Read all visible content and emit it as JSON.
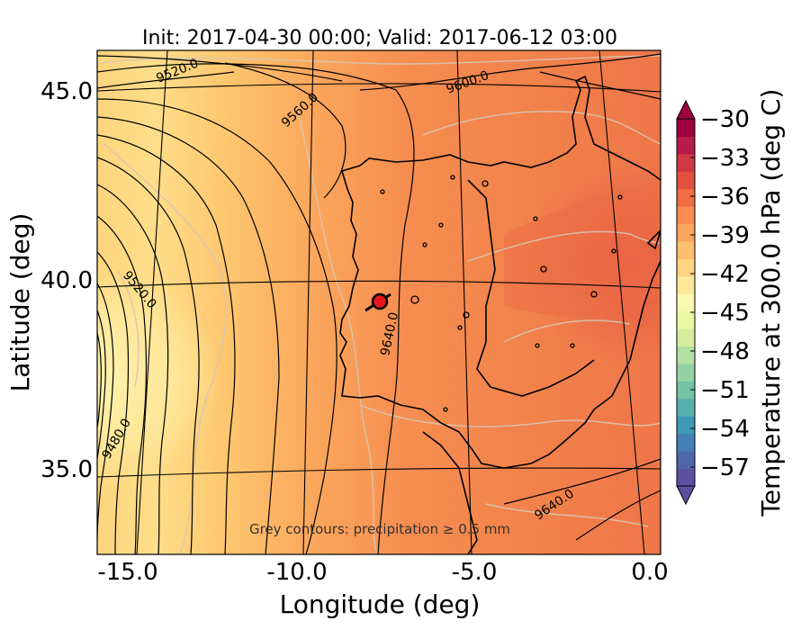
{
  "title": "Init: 2017-04-30 00:00; Valid: 2017-06-12 03:00",
  "xlabel": "Longitude (deg)",
  "ylabel": "Latitude (deg)",
  "x_ticks": [
    "-15.0",
    "-10.0",
    "-5.0",
    "0.0"
  ],
  "y_ticks": [
    "45.0",
    "40.0",
    "35.0"
  ],
  "note": "Grey contours: precipitation ≥ 0.5 mm",
  "colorbar": {
    "label": "Temperature at 300.0 hPa (deg C)",
    "ticks": [
      "−30",
      "−33",
      "−36",
      "−39",
      "−42",
      "−45",
      "−48",
      "−51",
      "−54",
      "−57"
    ],
    "colors": [
      "#5e4fa2",
      "#4f66ad",
      "#4480b8",
      "#3f98b6",
      "#56b0ad",
      "#74c4a5",
      "#94d2a4",
      "#b4e0a2",
      "#d3ed9c",
      "#ebf7a3",
      "#fbf8b0",
      "#fee99a",
      "#fed482",
      "#fdbf6f",
      "#fca55d",
      "#f88c51",
      "#f06c45",
      "#e0523e",
      "#cd3a46",
      "#b41d47",
      "#9e0142"
    ],
    "extend": "both"
  },
  "contour_labels": [
    "9520.0",
    "9560.0",
    "9600.0",
    "9520.0",
    "9640.0",
    "9480.0",
    "9640.0"
  ],
  "marker": {
    "lon": -7.6,
    "lat": 39.3,
    "color": "#e8161b"
  }
}
